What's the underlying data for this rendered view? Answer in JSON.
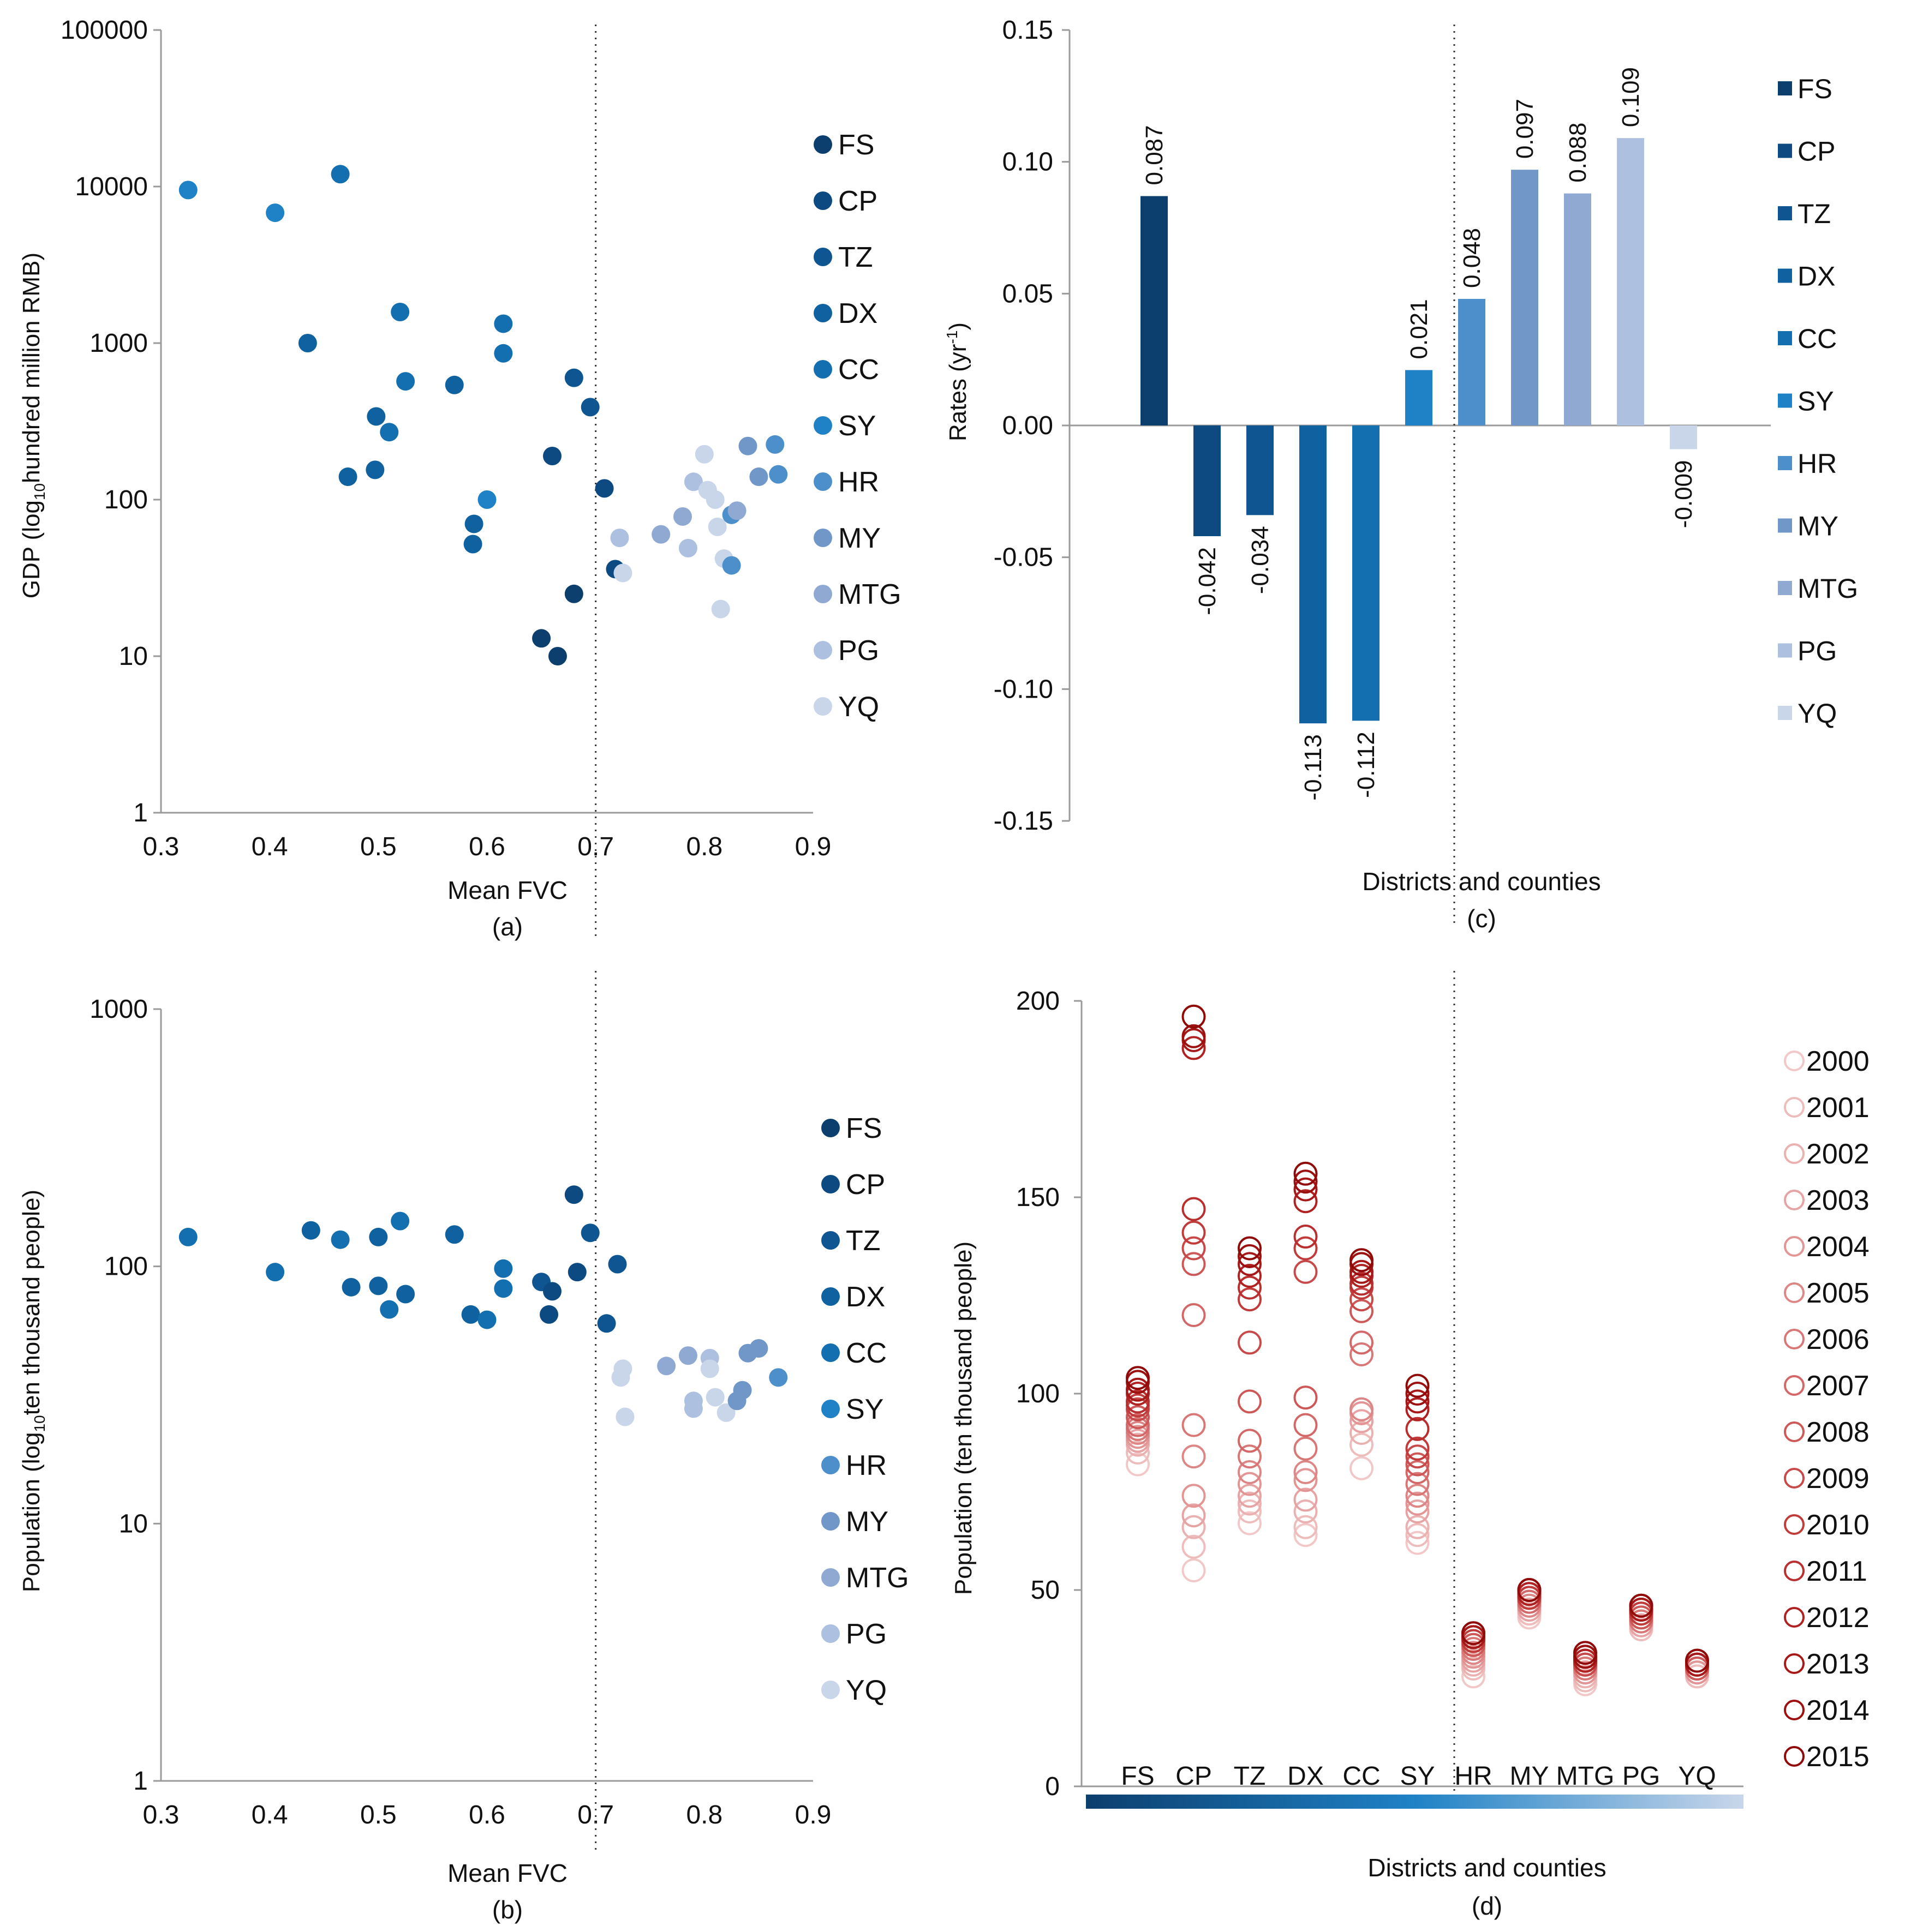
{
  "colors": {
    "district_blues": [
      "#0c3e6e",
      "#0d4a82",
      "#0e5592",
      "#0f629f",
      "#136fb0",
      "#1f82c6",
      "#4d8fcb",
      "#7197c8",
      "#8fa9d2",
      "#adc0df",
      "#c9d6ea"
    ],
    "year_reds": [
      "#f2c7c7",
      "#efbcbc",
      "#ebb0b0",
      "#e7a3a3",
      "#e39595",
      "#de8686",
      "#d97777",
      "#d46767",
      "#ce5858",
      "#c84949",
      "#c13b3b",
      "#b92e2e",
      "#b02222",
      "#a71818",
      "#9c1010",
      "#900a0a"
    ],
    "axis": "#9a9a9a",
    "divider": "#333333"
  },
  "chart_data": [
    {
      "id": "a",
      "type": "scatter",
      "caption": "(a)",
      "xlabel": "Mean FVC",
      "ylabel_main": "GDP (log",
      "ylabel_sub": "10",
      "ylabel_rest": "hundred million RMB)",
      "xlim": [
        0.3,
        0.9
      ],
      "xticks": [
        "0.3",
        "0.4",
        "0.5",
        "0.6",
        "0.7",
        "0.8",
        "0.9"
      ],
      "yscale": "log",
      "ylim": [
        1,
        100000
      ],
      "yticks": [
        "1",
        "10",
        "100",
        "1000",
        "10000",
        "100000"
      ],
      "divider_x": 0.7,
      "legend": [
        "FS",
        "CP",
        "TZ",
        "DX",
        "CC",
        "SY",
        "HR",
        "MY",
        "MTG",
        "PG",
        "YQ"
      ],
      "points": [
        {
          "x": 0.325,
          "y": 9500,
          "s": 5
        },
        {
          "x": 0.405,
          "y": 6800,
          "s": 5
        },
        {
          "x": 0.465,
          "y": 12000,
          "s": 4
        },
        {
          "x": 0.435,
          "y": 1000,
          "s": 3
        },
        {
          "x": 0.52,
          "y": 1580,
          "s": 4
        },
        {
          "x": 0.615,
          "y": 1330,
          "s": 4
        },
        {
          "x": 0.615,
          "y": 860,
          "s": 4
        },
        {
          "x": 0.525,
          "y": 570,
          "s": 4
        },
        {
          "x": 0.57,
          "y": 540,
          "s": 3
        },
        {
          "x": 0.498,
          "y": 340,
          "s": 3
        },
        {
          "x": 0.51,
          "y": 270,
          "s": 4
        },
        {
          "x": 0.472,
          "y": 140,
          "s": 3
        },
        {
          "x": 0.497,
          "y": 155,
          "s": 3
        },
        {
          "x": 0.6,
          "y": 100,
          "s": 5
        },
        {
          "x": 0.588,
          "y": 70,
          "s": 3
        },
        {
          "x": 0.587,
          "y": 52,
          "s": 3
        },
        {
          "x": 0.68,
          "y": 600,
          "s": 2
        },
        {
          "x": 0.695,
          "y": 390,
          "s": 2
        },
        {
          "x": 0.66,
          "y": 190,
          "s": 1
        },
        {
          "x": 0.708,
          "y": 118,
          "s": 1
        },
        {
          "x": 0.68,
          "y": 25,
          "s": 0
        },
        {
          "x": 0.65,
          "y": 13,
          "s": 0
        },
        {
          "x": 0.665,
          "y": 10,
          "s": 0
        },
        {
          "x": 0.718,
          "y": 36,
          "s": 1
        },
        {
          "x": 0.722,
          "y": 57,
          "s": 9
        },
        {
          "x": 0.725,
          "y": 34,
          "s": 10
        },
        {
          "x": 0.76,
          "y": 60,
          "s": 8
        },
        {
          "x": 0.78,
          "y": 78,
          "s": 8
        },
        {
          "x": 0.785,
          "y": 49,
          "s": 9
        },
        {
          "x": 0.79,
          "y": 130,
          "s": 9
        },
        {
          "x": 0.8,
          "y": 195,
          "s": 10
        },
        {
          "x": 0.803,
          "y": 115,
          "s": 10
        },
        {
          "x": 0.81,
          "y": 100,
          "s": 10
        },
        {
          "x": 0.812,
          "y": 67,
          "s": 10
        },
        {
          "x": 0.818,
          "y": 42,
          "s": 10
        },
        {
          "x": 0.815,
          "y": 20,
          "s": 10
        },
        {
          "x": 0.825,
          "y": 80,
          "s": 6
        },
        {
          "x": 0.83,
          "y": 85,
          "s": 8
        },
        {
          "x": 0.825,
          "y": 38,
          "s": 6
        },
        {
          "x": 0.84,
          "y": 220,
          "s": 7
        },
        {
          "x": 0.85,
          "y": 140,
          "s": 7
        },
        {
          "x": 0.865,
          "y": 225,
          "s": 6
        },
        {
          "x": 0.868,
          "y": 145,
          "s": 6
        }
      ]
    },
    {
      "id": "b",
      "type": "scatter",
      "caption": "(b)",
      "xlabel": "Mean FVC",
      "ylabel_main": "Population (log",
      "ylabel_sub": "10",
      "ylabel_rest": "ten thousand people)",
      "xlim": [
        0.3,
        0.9
      ],
      "xticks": [
        "0.3",
        "0.4",
        "0.5",
        "0.6",
        "0.7",
        "0.8",
        "0.9"
      ],
      "yscale": "log",
      "ylim": [
        1,
        1000
      ],
      "yticks": [
        "1",
        "10",
        "100",
        "1000"
      ],
      "divider_x": 0.7,
      "legend": [
        "FS",
        "CP",
        "TZ",
        "DX",
        "CC",
        "SY",
        "HR",
        "MY",
        "MTG",
        "PG",
        "YQ"
      ],
      "points": [
        {
          "x": 0.325,
          "y": 130,
          "s": 4
        },
        {
          "x": 0.405,
          "y": 95,
          "s": 4
        },
        {
          "x": 0.438,
          "y": 138,
          "s": 3
        },
        {
          "x": 0.465,
          "y": 127,
          "s": 4
        },
        {
          "x": 0.5,
          "y": 130,
          "s": 3
        },
        {
          "x": 0.52,
          "y": 150,
          "s": 4
        },
        {
          "x": 0.57,
          "y": 133,
          "s": 3
        },
        {
          "x": 0.475,
          "y": 83,
          "s": 3
        },
        {
          "x": 0.5,
          "y": 84,
          "s": 3
        },
        {
          "x": 0.525,
          "y": 78,
          "s": 3
        },
        {
          "x": 0.51,
          "y": 68,
          "s": 4
        },
        {
          "x": 0.585,
          "y": 65,
          "s": 3
        },
        {
          "x": 0.6,
          "y": 62,
          "s": 4
        },
        {
          "x": 0.615,
          "y": 98,
          "s": 4
        },
        {
          "x": 0.615,
          "y": 82,
          "s": 4
        },
        {
          "x": 0.65,
          "y": 87,
          "s": 2
        },
        {
          "x": 0.66,
          "y": 80,
          "s": 1
        },
        {
          "x": 0.657,
          "y": 65,
          "s": 1
        },
        {
          "x": 0.68,
          "y": 190,
          "s": 1
        },
        {
          "x": 0.683,
          "y": 95,
          "s": 1
        },
        {
          "x": 0.695,
          "y": 135,
          "s": 2
        },
        {
          "x": 0.72,
          "y": 102,
          "s": 2
        },
        {
          "x": 0.71,
          "y": 60,
          "s": 2
        },
        {
          "x": 0.725,
          "y": 40,
          "s": 10
        },
        {
          "x": 0.723,
          "y": 37,
          "s": 10
        },
        {
          "x": 0.727,
          "y": 26,
          "s": 10
        },
        {
          "x": 0.765,
          "y": 41,
          "s": 8
        },
        {
          "x": 0.785,
          "y": 45,
          "s": 8
        },
        {
          "x": 0.79,
          "y": 28,
          "s": 9
        },
        {
          "x": 0.79,
          "y": 30,
          "s": 9
        },
        {
          "x": 0.805,
          "y": 44,
          "s": 9
        },
        {
          "x": 0.805,
          "y": 40,
          "s": 10
        },
        {
          "x": 0.81,
          "y": 31,
          "s": 10
        },
        {
          "x": 0.82,
          "y": 27,
          "s": 10
        },
        {
          "x": 0.83,
          "y": 30,
          "s": 7
        },
        {
          "x": 0.835,
          "y": 33,
          "s": 7
        },
        {
          "x": 0.84,
          "y": 46,
          "s": 7
        },
        {
          "x": 0.85,
          "y": 48,
          "s": 7
        },
        {
          "x": 0.868,
          "y": 37,
          "s": 6
        }
      ]
    },
    {
      "id": "c",
      "type": "bar",
      "caption": "(c)",
      "xlabel": "Districts and counties",
      "ylabel_main": "Rates (yr",
      "ylabel_sup": "-1",
      "ylabel_rest": ")",
      "ylim": [
        -0.15,
        0.15
      ],
      "yticks": [
        "0.15",
        "0.10",
        "0.05",
        "0.00",
        "-0.05",
        "-0.10",
        "-0.15"
      ],
      "categories": [
        "FS",
        "CP",
        "TZ",
        "DX",
        "CC",
        "SY",
        "HR",
        "MY",
        "MTG",
        "PG",
        "YQ"
      ],
      "values": [
        0.087,
        -0.042,
        -0.034,
        -0.113,
        -0.112,
        0.021,
        0.048,
        0.097,
        0.088,
        0.109,
        -0.009
      ],
      "value_labels": [
        "0.087",
        "-0.042",
        "-0.034",
        "-0.113",
        "-0.112",
        "0.021",
        "0.048",
        "0.097",
        "0.088",
        "0.109",
        "-0.009"
      ],
      "legend": [
        "FS",
        "CP",
        "TZ",
        "DX",
        "CC",
        "SY",
        "HR",
        "MY",
        "MTG",
        "PG",
        "YQ"
      ]
    },
    {
      "id": "d",
      "type": "scatter",
      "caption": "(d)",
      "xlabel": "Districts and counties",
      "ylabel": "Population (ten thousand people)",
      "ylim": [
        0,
        200
      ],
      "yticks": [
        "0",
        "50",
        "100",
        "150",
        "200"
      ],
      "categories": [
        "FS",
        "CP",
        "TZ",
        "DX",
        "CC",
        "SY",
        "HR",
        "MY",
        "MTG",
        "PG",
        "YQ"
      ],
      "years": [
        "2000",
        "2001",
        "2002",
        "2003",
        "2004",
        "2005",
        "2006",
        "2007",
        "2008",
        "2009",
        "2010",
        "2011",
        "2012",
        "2013",
        "2014",
        "2015"
      ],
      "series": [
        {
          "name": "FS",
          "values": [
            82,
            85,
            87,
            88,
            89,
            90,
            91,
            92,
            94,
            96,
            97,
            98,
            100,
            101,
            103,
            104
          ]
        },
        {
          "name": "CP",
          "values": [
            55,
            61,
            66,
            69,
            74,
            84,
            92,
            120,
            133,
            137,
            141,
            147,
            188,
            190,
            191,
            196
          ]
        },
        {
          "name": "TZ",
          "values": [
            67,
            70,
            72,
            74,
            77,
            80,
            84,
            88,
            98,
            113,
            124,
            127,
            130,
            133,
            135,
            137
          ]
        },
        {
          "name": "DX",
          "values": [
            64,
            66,
            70,
            73,
            78,
            80,
            86,
            92,
            99,
            131,
            137,
            140,
            149,
            152,
            154,
            156
          ]
        },
        {
          "name": "CC",
          "values": [
            81,
            87,
            90,
            93,
            95,
            96,
            110,
            113,
            121,
            124,
            127,
            128,
            130,
            131,
            133,
            134
          ]
        },
        {
          "name": "SY",
          "values": [
            62,
            64,
            66,
            70,
            72,
            74,
            77,
            80,
            82,
            84,
            86,
            91,
            96,
            98,
            100,
            102
          ]
        },
        {
          "name": "HR",
          "values": [
            28,
            30,
            31,
            32,
            33,
            34,
            35,
            36,
            36,
            37,
            37,
            38,
            38,
            38,
            39,
            39
          ]
        },
        {
          "name": "MY",
          "values": [
            43,
            44,
            45,
            45,
            46,
            46,
            47,
            47,
            48,
            48,
            48,
            49,
            49,
            50,
            50,
            50
          ]
        },
        {
          "name": "MTG",
          "values": [
            26,
            27,
            28,
            29,
            29,
            30,
            30,
            31,
            31,
            31,
            32,
            32,
            32,
            33,
            33,
            34
          ]
        },
        {
          "name": "PG",
          "values": [
            40,
            40,
            41,
            41,
            42,
            42,
            42,
            43,
            43,
            44,
            44,
            45,
            45,
            45,
            46,
            46
          ]
        },
        {
          "name": "YQ",
          "values": [
            28,
            28,
            29,
            29,
            29,
            30,
            30,
            30,
            30,
            31,
            31,
            31,
            31,
            31,
            32,
            32
          ]
        }
      ]
    }
  ]
}
